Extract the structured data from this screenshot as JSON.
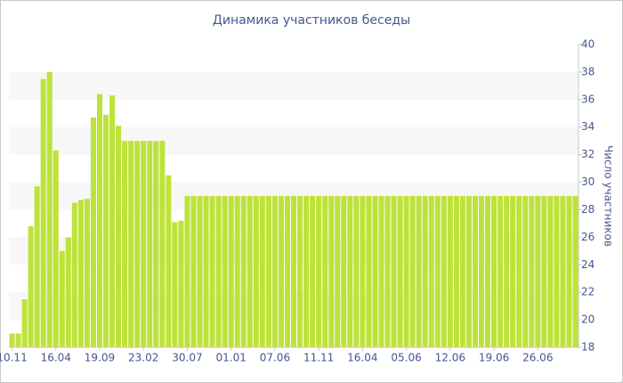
{
  "chart_data": {
    "type": "bar",
    "title": "Динамика участников беседы",
    "y_label": "Число участников",
    "color": "#bde33a",
    "categories": [
      "10.11",
      null,
      null,
      null,
      null,
      null,
      null,
      "16.04",
      null,
      null,
      null,
      null,
      null,
      null,
      "19.09",
      null,
      null,
      null,
      null,
      null,
      null,
      "23.02",
      null,
      null,
      null,
      null,
      null,
      null,
      "30.07",
      null,
      null,
      null,
      null,
      null,
      null,
      "01.01",
      null,
      null,
      null,
      null,
      null,
      null,
      "07.06",
      null,
      null,
      null,
      null,
      null,
      null,
      "11.11",
      null,
      null,
      null,
      null,
      null,
      null,
      "16.04",
      null,
      null,
      null,
      null,
      null,
      null,
      "05.06",
      null,
      null,
      null,
      null,
      null,
      null,
      "12.06",
      null,
      null,
      null,
      null,
      null,
      null,
      "19.06",
      null,
      null,
      null,
      null,
      null,
      null,
      "26.06",
      null,
      null,
      null,
      null,
      null,
      null
    ],
    "values": [
      19,
      19,
      21.5,
      26.8,
      29.7,
      37.5,
      38,
      32.3,
      25,
      26,
      28.5,
      28.7,
      28.8,
      34.7,
      36.4,
      34.9,
      36.3,
      34.1,
      33,
      33,
      33,
      33,
      33,
      33,
      33,
      30.5,
      27.1,
      27.2,
      29,
      29,
      29,
      29,
      29,
      29,
      29,
      29,
      29,
      29,
      29,
      29,
      29,
      29,
      29,
      29,
      29,
      29,
      29,
      29,
      29,
      29,
      29,
      29,
      29,
      29,
      29,
      29,
      29,
      29,
      29,
      29,
      29,
      29,
      29,
      29,
      29,
      29,
      29,
      29,
      29,
      29,
      29,
      29,
      29,
      29,
      29,
      29,
      29,
      29,
      29,
      29,
      29,
      29,
      29,
      29,
      29,
      29,
      29,
      29,
      29,
      29,
      29
    ],
    "ylim": [
      18,
      40
    ],
    "yticks": [
      18,
      20,
      22,
      24,
      26,
      28,
      30,
      32,
      34,
      36,
      38,
      40
    ],
    "y_axis_side": "right",
    "grid_bands": true
  }
}
